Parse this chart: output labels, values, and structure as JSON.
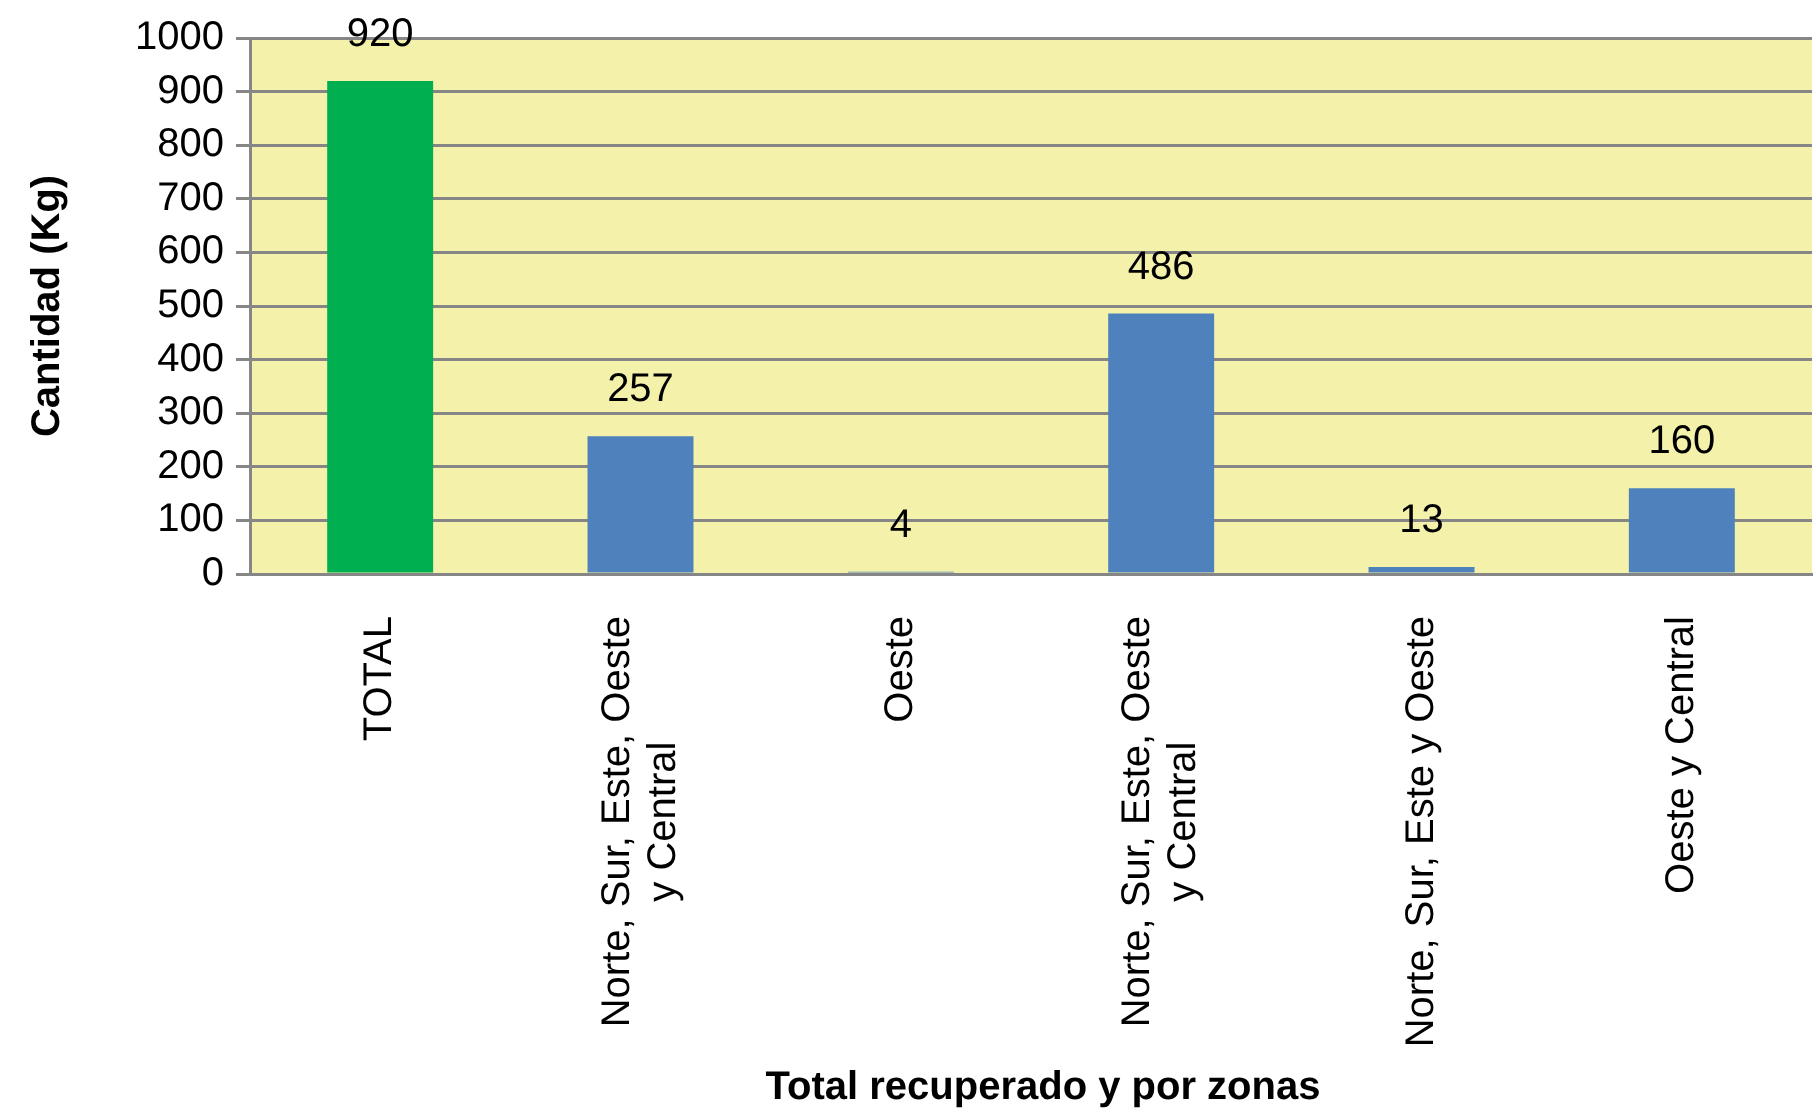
{
  "chart_data": {
    "type": "bar",
    "categories": [
      "TOTAL",
      "Norte, Sur, Este, Oeste y Central",
      "Oeste",
      "Norte, Sur, Este, Oeste y Central",
      "Norte, Sur, Este y Oeste",
      "Oeste y Central"
    ],
    "values": [
      920,
      257,
      4,
      486,
      13,
      160
    ],
    "colors": [
      "#00b050",
      "#4f81bd",
      "#4f81bd",
      "#4f81bd",
      "#4f81bd",
      "#4f81bd"
    ],
    "xlabel": "Total recuperado y por zonas",
    "ylabel": "Cantidad (Kg)",
    "ylim": [
      0,
      1000
    ],
    "yticks": [
      0,
      100,
      200,
      300,
      400,
      500,
      600,
      700,
      800,
      900,
      1000
    ],
    "grid": "y",
    "data_labels": true
  }
}
